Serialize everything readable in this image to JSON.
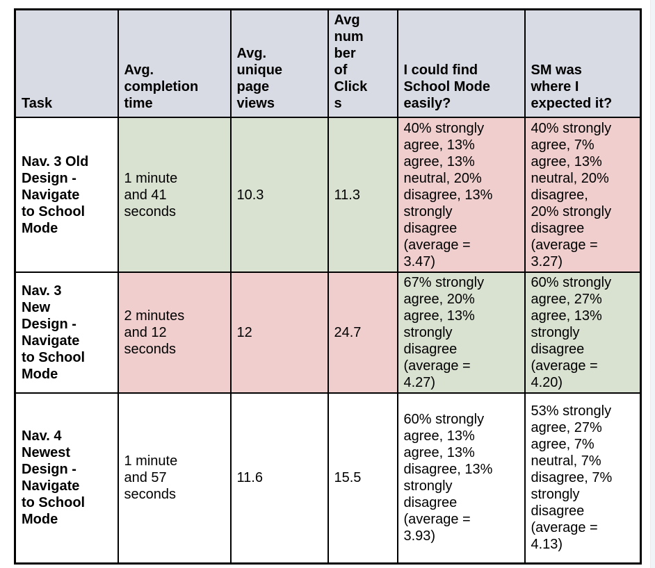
{
  "page": {
    "background": "#ffffff",
    "right_edge_color": "#f1f4f6"
  },
  "table": {
    "colors": {
      "header_bg": "#d8dbe3",
      "good_bg": "#d9e2d0",
      "bad_bg": "#f0cecd",
      "border": "#000000",
      "text": "#000000"
    },
    "headers": [
      {
        "key": "task",
        "label": "Task"
      },
      {
        "key": "avg_completion_time",
        "label": "Avg.\ncompletion\ntime"
      },
      {
        "key": "avg_unique_page_views",
        "label": "Avg.\nunique\npage\nviews"
      },
      {
        "key": "avg_number_of_clicks",
        "label": "Avg\nnum\nber\nof\nClick\ns"
      },
      {
        "key": "find_school_mode_easily",
        "label": "I could find\nSchool Mode\neasily?"
      },
      {
        "key": "sm_where_expected",
        "label": "SM was\nwhere I\nexpected it?"
      }
    ],
    "rows": [
      {
        "task": "Nav. 3 Old\nDesign -\nNavigate\nto School\nMode",
        "cells": [
          {
            "text": "1 minute\nand 41\nseconds",
            "tone": "good"
          },
          {
            "text": "10.3",
            "tone": "good"
          },
          {
            "text": "11.3",
            "tone": "good"
          },
          {
            "text": "40% strongly\nagree, 13%\nagree, 13%\nneutral, 20%\ndisagree, 13%\nstrongly\ndisagree\n(average =\n3.47)",
            "tone": "bad"
          },
          {
            "text": "40% strongly\nagree, 7%\nagree, 13%\nneutral, 20%\ndisagree,\n20% strongly\ndisagree\n(average =\n3.27)",
            "tone": "bad"
          }
        ]
      },
      {
        "task": "Nav. 3\nNew\nDesign -\nNavigate\nto School\nMode",
        "cells": [
          {
            "text": "2 minutes\nand 12\nseconds",
            "tone": "bad"
          },
          {
            "text": "12",
            "tone": "bad"
          },
          {
            "text": "24.7",
            "tone": "bad"
          },
          {
            "text": "67% strongly\nagree, 20%\nagree, 13%\nstrongly\ndisagree\n(average =\n4.27)",
            "tone": "good"
          },
          {
            "text": "60% strongly\nagree, 27%\nagree, 13%\nstrongly\ndisagree\n(average =\n4.20)",
            "tone": "good"
          }
        ]
      },
      {
        "task": "Nav. 4\nNewest\nDesign -\nNavigate\nto School\nMode",
        "cells": [
          {
            "text": "1 minute\nand 57\nseconds",
            "tone": "plain"
          },
          {
            "text": "11.6",
            "tone": "plain"
          },
          {
            "text": "15.5",
            "tone": "plain"
          },
          {
            "text": "60% strongly\nagree, 13%\nagree, 13%\ndisagree, 13%\nstrongly\ndisagree\n(average =\n3.93)",
            "tone": "plain"
          },
          {
            "text": "53% strongly\nagree, 27%\nagree, 7%\nneutral, 7%\ndisagree, 7%\nstrongly\ndisagree\n(average =\n4.13)",
            "tone": "plain"
          }
        ]
      }
    ]
  }
}
